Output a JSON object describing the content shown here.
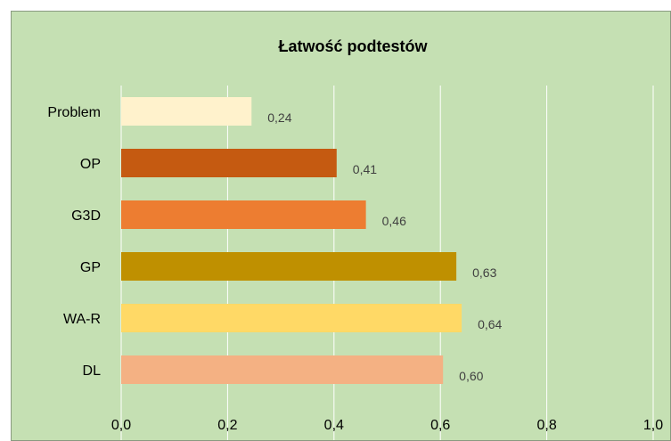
{
  "chart_data": {
    "type": "bar",
    "orientation": "horizontal",
    "title": "Łatwość podtestów",
    "xlabel": "",
    "ylabel": "",
    "categories": [
      "Problem",
      "OP",
      "G3D",
      "GP",
      "WA-R",
      "DL"
    ],
    "values": [
      0.245,
      0.405,
      0.46,
      0.63,
      0.64,
      0.605
    ],
    "data_labels": [
      "0,24",
      "0,41",
      "0,46",
      "0,63",
      "0,64",
      "0,60"
    ],
    "bar_colors": [
      "#fff2cc",
      "#c55a11",
      "#ed7d31",
      "#bf9000",
      "#ffd966",
      "#f4b183"
    ],
    "xlim": [
      0,
      1.0
    ],
    "ticks": [
      0,
      0.2,
      0.4,
      0.6,
      0.8,
      1.0
    ],
    "tick_labels": [
      "0,0",
      "0,2",
      "0,4",
      "0,6",
      "0,8",
      "1,0"
    ],
    "grid": "vertical",
    "legend": "none",
    "background_color": "#c5e0b3",
    "gridline_color": "#ffffff"
  }
}
